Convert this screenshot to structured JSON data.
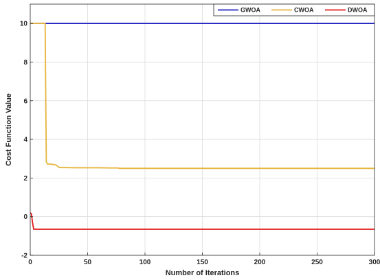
{
  "chart_data": {
    "type": "line",
    "title": "",
    "xlabel": "Number of Iterations",
    "ylabel": "Cost Function Value",
    "xlim": [
      0,
      300
    ],
    "ylim": [
      -2,
      11
    ],
    "xticks": [
      0,
      50,
      100,
      150,
      200,
      250,
      300
    ],
    "yticks": [
      -2,
      0,
      2,
      4,
      6,
      8,
      10
    ],
    "grid": true,
    "legend_position": "top-right",
    "series": [
      {
        "name": "GWOA",
        "color": "#1f1fbf",
        "x": [
          0,
          300
        ],
        "y": [
          10,
          10
        ]
      },
      {
        "name": "CWOA",
        "color": "#e6b43c",
        "x": [
          0,
          13,
          14,
          15,
          17,
          20,
          21,
          23,
          25,
          26,
          30,
          40,
          50,
          60,
          70,
          76,
          78,
          100,
          150,
          200,
          250,
          300
        ],
        "y": [
          10,
          10,
          2.85,
          2.72,
          2.72,
          2.7,
          2.7,
          2.65,
          2.55,
          2.54,
          2.54,
          2.53,
          2.53,
          2.53,
          2.52,
          2.52,
          2.5,
          2.5,
          2.5,
          2.5,
          2.5,
          2.5
        ]
      },
      {
        "name": "DWOA",
        "color": "#e01b1b",
        "x": [
          0,
          1,
          2,
          3,
          300
        ],
        "y": [
          0.2,
          0.15,
          -0.3,
          -0.65,
          -0.65
        ]
      }
    ]
  }
}
